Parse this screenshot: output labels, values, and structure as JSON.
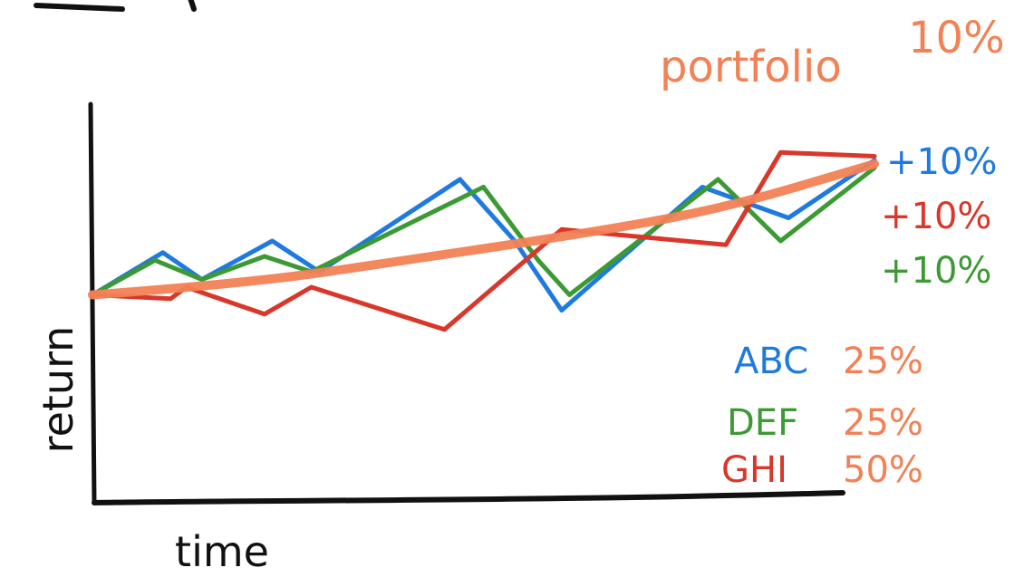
{
  "colors": {
    "ABC": "#1f7ae0",
    "DEF": "#3c9a34",
    "GHI": "#d9372a",
    "portfolio": "#f28155",
    "axis": "#111111"
  },
  "annotations": {
    "portfolio": "portfolio",
    "portfolio_return": "10%",
    "abc_return": "+10%",
    "ghi_return": "+10%",
    "def_return": "+10%"
  },
  "legend": [
    {
      "name": "ABC",
      "weight": "25%",
      "color_key": "ABC"
    },
    {
      "name": "DEF",
      "weight": "25%",
      "color_key": "DEF"
    },
    {
      "name": "GHI",
      "weight": "50%",
      "color_key": "GHI"
    }
  ],
  "chart_data": {
    "type": "line",
    "title": "",
    "xlabel": "time",
    "ylabel": "return",
    "grid": false,
    "legend_position": "bottom-right",
    "xlim": [
      0,
      100
    ],
    "ylim": [
      0,
      100
    ],
    "series": [
      {
        "name": "ABC",
        "x": [
          0,
          9,
          14,
          23,
          29,
          47,
          54,
          60,
          78,
          89,
          100
        ],
        "y": [
          54,
          65,
          58,
          68,
          60,
          84,
          68,
          50,
          82,
          74,
          89
        ]
      },
      {
        "name": "DEF",
        "x": [
          0,
          8,
          14,
          22,
          28,
          50,
          57,
          61,
          80,
          88,
          100
        ],
        "y": [
          54,
          63,
          58,
          64,
          60,
          82,
          63,
          54,
          84,
          68,
          87
        ]
      },
      {
        "name": "GHI",
        "x": [
          0,
          10,
          12,
          22,
          28,
          45,
          60,
          81,
          88,
          100
        ],
        "y": [
          54,
          53,
          56,
          49,
          56,
          45,
          71,
          67,
          91,
          90
        ]
      },
      {
        "name": "portfolio",
        "x": [
          0,
          20,
          40,
          60,
          80,
          100
        ],
        "y": [
          54,
          57,
          63,
          69,
          76,
          88
        ]
      }
    ]
  }
}
